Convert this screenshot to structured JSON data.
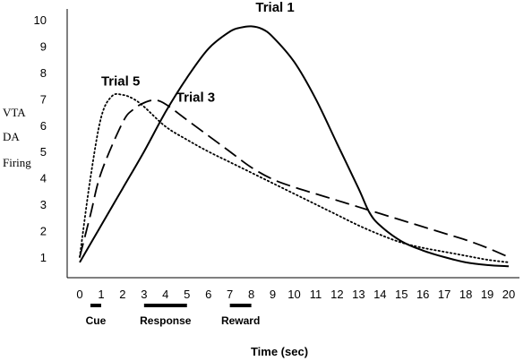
{
  "chart_data": {
    "type": "line",
    "xlabel": "Time (sec)",
    "ylabel_lines": [
      "VTA",
      "DA",
      "Firing"
    ],
    "xlim": [
      0,
      20
    ],
    "ylim": [
      1,
      10
    ],
    "x_ticks": [
      "0",
      "1",
      "2",
      "3",
      "4",
      "5",
      "6",
      "7",
      "8",
      "9",
      "10",
      "11",
      "12",
      "13",
      "14",
      "15",
      "16",
      "17",
      "18",
      "19",
      "20"
    ],
    "y_ticks": [
      "1",
      "2",
      "3",
      "4",
      "5",
      "6",
      "7",
      "8",
      "9",
      "10"
    ],
    "grid": false,
    "series": [
      {
        "name": "Trial 1",
        "style": "solid",
        "x": [
          0,
          0.5,
          1,
          2,
          3,
          4,
          5,
          6,
          7,
          7.5,
          8,
          8.5,
          9,
          10,
          11,
          12,
          13,
          13.5,
          14,
          15,
          16,
          17,
          18,
          19,
          20
        ],
        "y": [
          0.8,
          1.5,
          2.2,
          3.6,
          5.0,
          6.5,
          7.8,
          8.9,
          9.55,
          9.7,
          9.75,
          9.65,
          9.35,
          8.4,
          7.0,
          5.3,
          3.6,
          2.7,
          2.2,
          1.6,
          1.25,
          1.0,
          0.8,
          0.7,
          0.65
        ]
      },
      {
        "name": "Trial 3",
        "style": "dashed",
        "x": [
          0,
          0.5,
          1,
          2,
          2.5,
          3,
          3.5,
          4,
          5,
          6,
          7,
          8,
          9,
          10,
          11,
          12,
          13,
          14,
          15,
          16,
          17,
          18,
          19,
          20
        ],
        "y": [
          1.0,
          2.6,
          4.2,
          6.1,
          6.6,
          6.85,
          6.95,
          6.8,
          6.2,
          5.6,
          5.0,
          4.4,
          3.95,
          3.65,
          3.4,
          3.15,
          2.9,
          2.65,
          2.4,
          2.15,
          1.9,
          1.65,
          1.35,
          1.0
        ]
      },
      {
        "name": "Trial 5",
        "style": "dotted",
        "x": [
          0,
          0.5,
          1,
          1.5,
          2,
          2.5,
          3,
          4,
          5,
          6,
          7,
          8,
          9,
          10,
          11,
          12,
          13,
          14,
          15,
          16,
          17,
          18,
          19,
          20
        ],
        "y": [
          1.0,
          4.0,
          6.3,
          7.1,
          7.15,
          7.0,
          6.7,
          5.95,
          5.45,
          5.0,
          4.6,
          4.2,
          3.8,
          3.4,
          3.0,
          2.6,
          2.2,
          1.85,
          1.55,
          1.35,
          1.2,
          1.05,
          0.9,
          0.8
        ]
      }
    ],
    "annotations": [
      {
        "text": "Trial 1",
        "x": 8.2,
        "y": 10.3
      },
      {
        "text": "Trial 5",
        "x": 1.0,
        "y": 7.5
      },
      {
        "text": "Trial 3",
        "x": 4.5,
        "y": 6.9
      }
    ],
    "phases": [
      {
        "label": "Cue",
        "start": 0.5,
        "end": 1.0
      },
      {
        "label": "Response",
        "start": 3.0,
        "end": 5.0
      },
      {
        "label": "Reward",
        "start": 7.0,
        "end": 8.0
      }
    ]
  }
}
